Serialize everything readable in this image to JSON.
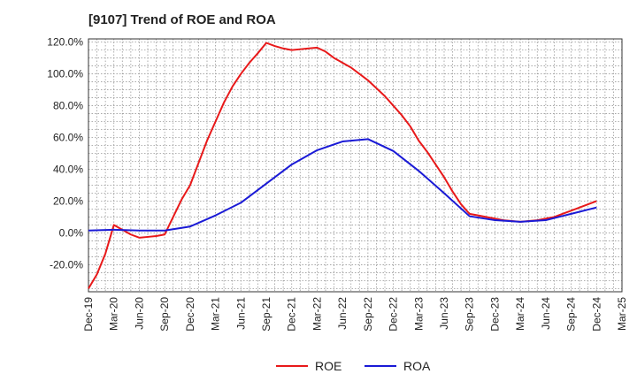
{
  "chart_data": {
    "type": "line",
    "title": "[9107]  Trend of ROE and ROA",
    "xlabel": "",
    "ylabel": "",
    "ylim": [
      -37,
      122
    ],
    "y_ticks": [
      120,
      100,
      80,
      60,
      40,
      20,
      0,
      -20
    ],
    "y_tick_labels": [
      "120.0%",
      "100.0%",
      "80.0%",
      "60.0%",
      "40.0%",
      "20.0%",
      "0.0%",
      "-20.0%"
    ],
    "x_tick_labels": [
      "Dec-19",
      "Mar-20",
      "Jun-20",
      "Sep-20",
      "Dec-20",
      "Mar-21",
      "Jun-21",
      "Sep-21",
      "Dec-21",
      "Mar-22",
      "Jun-22",
      "Sep-22",
      "Dec-22",
      "Mar-23",
      "Jun-23",
      "Sep-23",
      "Dec-23",
      "Mar-24",
      "Jun-24",
      "Sep-24",
      "Dec-24",
      "Mar-25"
    ],
    "grid": true,
    "legend_position": "bottom",
    "series": [
      {
        "name": "ROE",
        "color": "#e8191a",
        "x": [
          "Dec-19",
          "Jan-20",
          "Feb-20",
          "Mar-20",
          "Apr-20",
          "May-20",
          "Jun-20",
          "Jul-20",
          "Aug-20",
          "Sep-20",
          "Oct-20",
          "Nov-20",
          "Dec-20",
          "Jan-21",
          "Feb-21",
          "Mar-21",
          "Apr-21",
          "May-21",
          "Jun-21",
          "Jul-21",
          "Aug-21",
          "Sep-21",
          "Oct-21",
          "Nov-21",
          "Dec-21",
          "Jan-22",
          "Feb-22",
          "Mar-22",
          "Apr-22",
          "May-22",
          "Jun-22",
          "Jul-22",
          "Aug-22",
          "Sep-22",
          "Oct-22",
          "Nov-22",
          "Dec-22",
          "Jan-23",
          "Feb-23",
          "Mar-23",
          "Apr-23",
          "May-23",
          "Jun-23",
          "Jul-23",
          "Aug-23",
          "Sep-23",
          "Oct-23",
          "Nov-23",
          "Dec-23",
          "Jan-24",
          "Feb-24",
          "Mar-24",
          "Apr-24",
          "May-24",
          "Jun-24",
          "Jul-24",
          "Aug-24",
          "Sep-24",
          "Oct-24",
          "Nov-24",
          "Dec-24"
        ],
        "values": [
          -35,
          -26,
          -13,
          5,
          2,
          -1,
          -3,
          -2.5,
          -2,
          -1,
          10,
          21,
          30,
          44,
          58,
          70,
          82,
          92,
          100,
          107,
          113,
          119.5,
          117.5,
          116,
          115,
          115.5,
          116,
          116.5,
          114,
          110,
          107,
          104,
          100,
          96,
          91,
          86,
          80,
          74,
          67,
          58,
          51,
          43,
          35,
          26,
          18,
          12,
          11,
          10,
          9,
          8,
          7.5,
          7,
          7.5,
          8,
          9,
          10,
          12,
          14,
          16,
          18,
          20
        ]
      },
      {
        "name": "ROA",
        "color": "#1a1ad6",
        "x": [
          "Dec-19",
          "Mar-20",
          "Jun-20",
          "Sep-20",
          "Dec-20",
          "Mar-21",
          "Jun-21",
          "Sep-21",
          "Dec-21",
          "Mar-22",
          "Jun-22",
          "Sep-22",
          "Dec-22",
          "Mar-23",
          "Jun-23",
          "Sep-23",
          "Dec-23",
          "Mar-24",
          "Jun-24",
          "Sep-24",
          "Dec-24"
        ],
        "values": [
          1.5,
          2,
          1.5,
          1.5,
          4,
          11,
          19,
          31,
          43,
          52,
          57.5,
          59,
          51.5,
          39,
          25,
          10.5,
          8,
          7,
          8,
          12,
          16
        ]
      }
    ]
  }
}
